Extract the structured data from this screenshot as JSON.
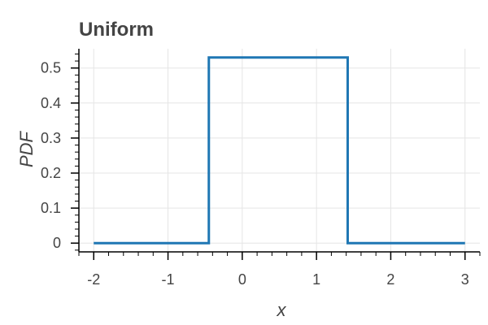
{
  "chart_data": {
    "type": "line",
    "title": "Uniform",
    "xlabel": "x",
    "ylabel": "PDF",
    "xlim": [
      -2.2,
      3.2
    ],
    "ylim": [
      -0.025,
      0.555
    ],
    "x_ticks": [
      -2,
      -1,
      0,
      1,
      2,
      3
    ],
    "x_tick_labels": [
      "-2",
      "-1",
      "0",
      "1",
      "2",
      "3"
    ],
    "y_ticks": [
      0,
      0.1,
      0.2,
      0.3,
      0.4,
      0.5
    ],
    "y_tick_labels": [
      "0",
      "0.1",
      "0.2",
      "0.3",
      "0.4",
      "0.5"
    ],
    "grid": true,
    "series": [
      {
        "color": "#1f77b4",
        "x": [
          -2,
          -0.45,
          -0.45,
          1.42,
          1.42,
          3
        ],
        "y": [
          0,
          0,
          0.53,
          0.53,
          0,
          0
        ]
      }
    ]
  }
}
